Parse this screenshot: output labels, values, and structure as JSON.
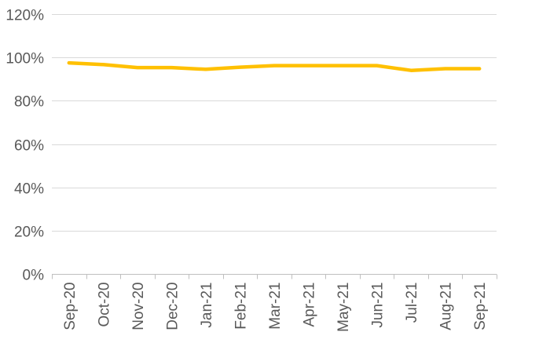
{
  "chart_data": {
    "type": "line",
    "title": "",
    "xlabel": "",
    "ylabel": "",
    "categories": [
      "Sep-20",
      "Oct-20",
      "Nov-20",
      "Dec-20",
      "Jan-21",
      "Feb-21",
      "Mar-21",
      "Apr-21",
      "May-21",
      "Jun-21",
      "Jul-21",
      "Aug-21",
      "Sep-21"
    ],
    "series": [
      {
        "values": [
          0.975,
          0.967,
          0.953,
          0.953,
          0.945,
          0.955,
          0.962,
          0.962,
          0.962,
          0.962,
          0.94,
          0.948,
          0.948
        ],
        "color": "#FFC000"
      }
    ],
    "ylim": [
      0,
      1.2
    ],
    "yticks": [
      0,
      0.2,
      0.4,
      0.6,
      0.8,
      1.0,
      1.2
    ],
    "ytick_labels": [
      "0%",
      "20%",
      "40%",
      "60%",
      "80%",
      "100%",
      "120%"
    ],
    "grid": true,
    "gridline_color": "#D9D9D9",
    "axis_line_color": "#BFBFBF",
    "legend": "none"
  }
}
